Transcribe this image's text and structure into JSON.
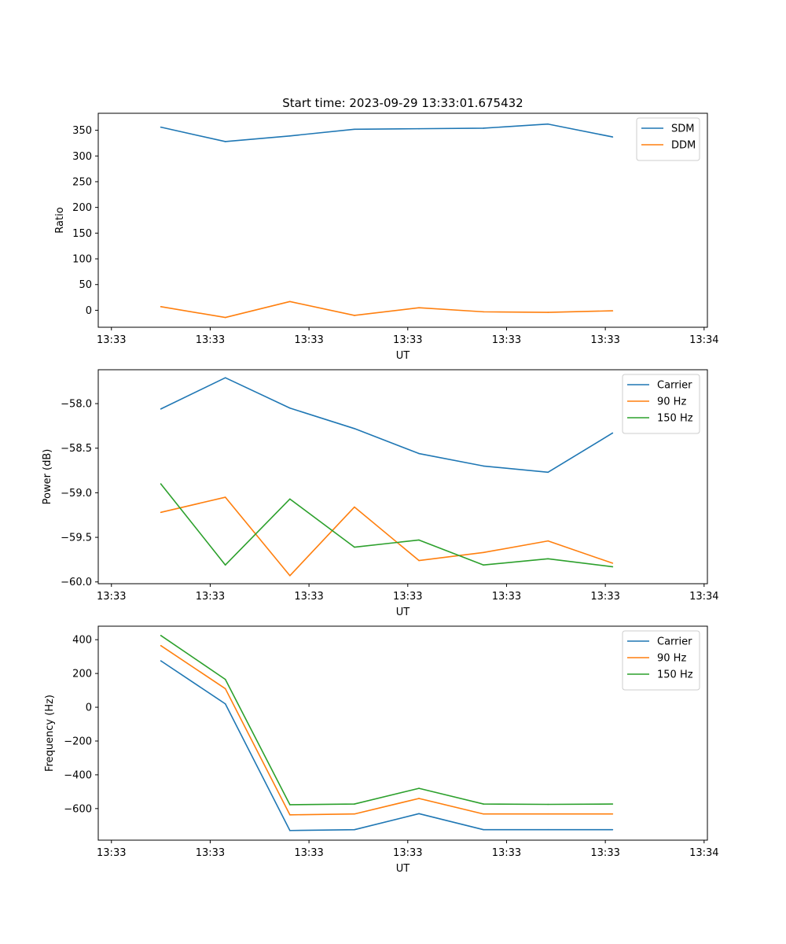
{
  "chart_data": [
    {
      "type": "line",
      "title": "Start time: 2023-09-29 13:33:01.675432",
      "xlabel": "UT",
      "ylabel": "Ratio",
      "x_range": [
        -0.2,
        9.05
      ],
      "x_ticks": [
        0,
        1.5,
        3,
        4.5,
        6,
        7.5,
        9
      ],
      "x_tick_labels": [
        "13:33",
        "13:33",
        "13:33",
        "13:33",
        "13:33",
        "13:33",
        "13:34"
      ],
      "ylim": [
        -33,
        383
      ],
      "y_ticks": [
        0,
        50,
        100,
        150,
        200,
        250,
        300,
        350
      ],
      "y_tick_labels": [
        "0",
        "50",
        "100",
        "150",
        "200",
        "250",
        "300",
        "350"
      ],
      "x": [
        0.75,
        1.73,
        2.71,
        3.69,
        4.67,
        5.65,
        6.63,
        7.61
      ],
      "series": [
        {
          "name": "SDM",
          "color": "#1f77b4",
          "values": [
            356,
            328,
            339,
            352,
            353,
            354,
            362,
            337
          ]
        },
        {
          "name": "DDM",
          "color": "#ff7f0e",
          "values": [
            7,
            -14,
            17,
            -10,
            5,
            -3,
            -4,
            -1
          ]
        }
      ],
      "legend": "upper right"
    },
    {
      "type": "line",
      "title": "",
      "xlabel": "UT",
      "ylabel": "Power (dB)",
      "x_range": [
        -0.2,
        9.05
      ],
      "x_ticks": [
        0,
        1.5,
        3,
        4.5,
        6,
        7.5,
        9
      ],
      "x_tick_labels": [
        "13:33",
        "13:33",
        "13:33",
        "13:33",
        "13:33",
        "13:33",
        "13:34"
      ],
      "ylim": [
        -60.02,
        -57.62
      ],
      "y_ticks": [
        -60.0,
        -59.5,
        -59.0,
        -58.5,
        -58.0
      ],
      "y_tick_labels": [
        "−60.0",
        "−59.5",
        "−59.0",
        "−58.5",
        "−58.0"
      ],
      "x": [
        0.75,
        1.73,
        2.71,
        3.69,
        4.67,
        5.65,
        6.63,
        7.61
      ],
      "series": [
        {
          "name": "Carrier",
          "color": "#1f77b4",
          "values": [
            -58.06,
            -57.71,
            -58.05,
            -58.28,
            -58.56,
            -58.7,
            -58.77,
            -58.33
          ]
        },
        {
          "name": "90 Hz",
          "color": "#ff7f0e",
          "values": [
            -59.22,
            -59.05,
            -59.93,
            -59.16,
            -59.76,
            -59.67,
            -59.54,
            -59.79
          ]
        },
        {
          "name": "150 Hz",
          "color": "#2ca02c",
          "values": [
            -58.9,
            -59.81,
            -59.07,
            -59.61,
            -59.53,
            -59.81,
            -59.74,
            -59.83
          ]
        }
      ],
      "legend": "upper right"
    },
    {
      "type": "line",
      "title": "",
      "xlabel": "UT",
      "ylabel": "Frequency (Hz)",
      "x_range": [
        -0.2,
        9.05
      ],
      "x_ticks": [
        0,
        1.5,
        3,
        4.5,
        6,
        7.5,
        9
      ],
      "x_tick_labels": [
        "13:33",
        "13:33",
        "13:33",
        "13:33",
        "13:33",
        "13:33",
        "13:34"
      ],
      "ylim": [
        -787,
        480
      ],
      "y_ticks": [
        -600,
        -400,
        -200,
        0,
        200,
        400
      ],
      "y_tick_labels": [
        "−600",
        "−400",
        "−200",
        "0",
        "200",
        "400"
      ],
      "x": [
        0.75,
        1.73,
        2.71,
        3.69,
        4.67,
        5.65,
        6.63,
        7.61
      ],
      "series": [
        {
          "name": "Carrier",
          "color": "#1f77b4",
          "values": [
            275,
            20,
            -730,
            -725,
            -630,
            -725,
            -725,
            -725
          ]
        },
        {
          "name": "90 Hz",
          "color": "#ff7f0e",
          "values": [
            365,
            110,
            -637,
            -632,
            -540,
            -632,
            -632,
            -632
          ]
        },
        {
          "name": "150 Hz",
          "color": "#2ca02c",
          "values": [
            425,
            165,
            -577,
            -573,
            -480,
            -573,
            -575,
            -573
          ]
        }
      ],
      "legend": "upper right"
    }
  ]
}
